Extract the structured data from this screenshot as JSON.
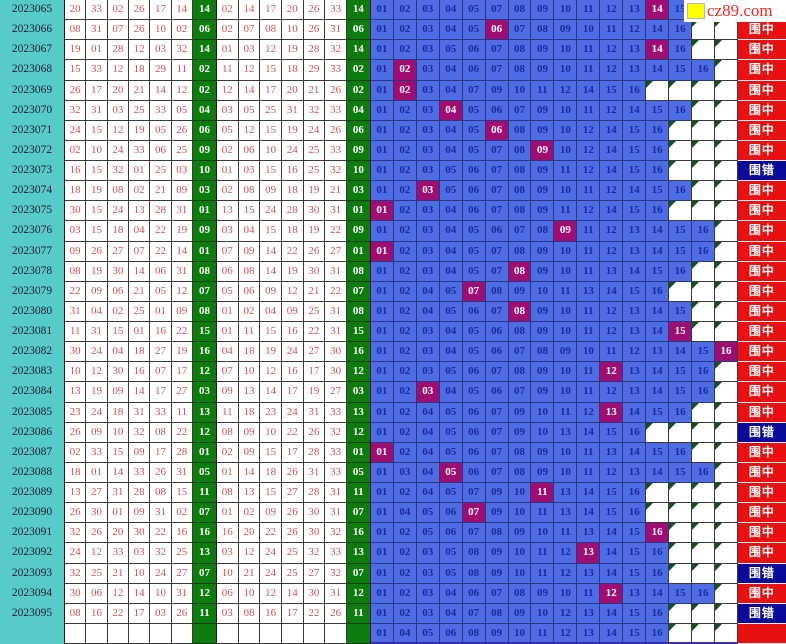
{
  "site_logo": {
    "text": "cz89.com",
    "square_color": "#ffff00",
    "text_color": "#e82b22"
  },
  "legend": {
    "hit": "围中",
    "miss": "围错"
  },
  "colors": {
    "period_bg": "#57caca",
    "draw_text": "#cc5252",
    "blue_ball_bg": "#0d7c0d",
    "covered_bg": "#4e6ce4",
    "covered_text": "#1b2b99",
    "hit_bg": "#a00d72",
    "result_hit_bg": "#e81010",
    "result_miss_bg": "#0a0a99"
  },
  "rows": [
    {
      "period": "2023065",
      "drawn": [
        "20",
        "33",
        "02",
        "26",
        "17",
        "14"
      ],
      "blue_ball": "14",
      "sorted": [
        "02",
        "14",
        "17",
        "20",
        "26",
        "33"
      ],
      "covered": [
        "01",
        "02",
        "03",
        "04",
        "05",
        "07",
        "08",
        "09",
        "10",
        "11",
        "12",
        "13",
        "14",
        "15"
      ],
      "result": ""
    },
    {
      "period": "2023066",
      "drawn": [
        "08",
        "31",
        "07",
        "26",
        "10",
        "02"
      ],
      "blue_ball": "06",
      "sorted": [
        "02",
        "07",
        "08",
        "10",
        "26",
        "31"
      ],
      "covered": [
        "01",
        "02",
        "03",
        "04",
        "05",
        "06",
        "07",
        "08",
        "09",
        "10",
        "11",
        "12",
        "14",
        "16"
      ],
      "result": "围中"
    },
    {
      "period": "2023067",
      "drawn": [
        "19",
        "01",
        "28",
        "12",
        "03",
        "32"
      ],
      "blue_ball": "14",
      "sorted": [
        "01",
        "03",
        "12",
        "19",
        "28",
        "32"
      ],
      "covered": [
        "01",
        "02",
        "03",
        "05",
        "06",
        "07",
        "08",
        "09",
        "10",
        "11",
        "12",
        "13",
        "14",
        "16"
      ],
      "result": "围中"
    },
    {
      "period": "2023068",
      "drawn": [
        "15",
        "33",
        "12",
        "18",
        "29",
        "11"
      ],
      "blue_ball": "02",
      "sorted": [
        "11",
        "12",
        "15",
        "18",
        "29",
        "33"
      ],
      "covered": [
        "01",
        "02",
        "03",
        "04",
        "06",
        "07",
        "08",
        "09",
        "10",
        "11",
        "12",
        "13",
        "14",
        "15",
        "16"
      ],
      "result": "围中"
    },
    {
      "period": "2023069",
      "drawn": [
        "26",
        "17",
        "20",
        "21",
        "14",
        "12"
      ],
      "blue_ball": "02",
      "sorted": [
        "12",
        "14",
        "17",
        "20",
        "21",
        "26"
      ],
      "covered": [
        "01",
        "02",
        "03",
        "04",
        "07",
        "09",
        "10",
        "11",
        "12",
        "14",
        "15",
        "16"
      ],
      "result": "围中"
    },
    {
      "period": "2023070",
      "drawn": [
        "32",
        "31",
        "03",
        "25",
        "33",
        "05"
      ],
      "blue_ball": "04",
      "sorted": [
        "03",
        "05",
        "25",
        "31",
        "32",
        "33"
      ],
      "covered": [
        "01",
        "02",
        "03",
        "04",
        "05",
        "06",
        "07",
        "09",
        "10",
        "11",
        "12",
        "14",
        "15",
        "16"
      ],
      "result": "围中"
    },
    {
      "period": "2023071",
      "drawn": [
        "24",
        "15",
        "12",
        "19",
        "05",
        "26"
      ],
      "blue_ball": "06",
      "sorted": [
        "05",
        "12",
        "15",
        "19",
        "24",
        "26"
      ],
      "covered": [
        "01",
        "02",
        "03",
        "04",
        "05",
        "06",
        "08",
        "09",
        "10",
        "12",
        "14",
        "15",
        "16"
      ],
      "result": "围中"
    },
    {
      "period": "2023072",
      "drawn": [
        "02",
        "10",
        "24",
        "33",
        "06",
        "25"
      ],
      "blue_ball": "09",
      "sorted": [
        "02",
        "06",
        "10",
        "24",
        "25",
        "33"
      ],
      "covered": [
        "01",
        "02",
        "03",
        "04",
        "05",
        "07",
        "08",
        "09",
        "10",
        "12",
        "14",
        "15",
        "16"
      ],
      "result": "围中"
    },
    {
      "period": "2023073",
      "drawn": [
        "16",
        "15",
        "32",
        "01",
        "25",
        "03"
      ],
      "blue_ball": "10",
      "sorted": [
        "01",
        "03",
        "15",
        "16",
        "25",
        "32"
      ],
      "covered": [
        "01",
        "02",
        "03",
        "05",
        "06",
        "07",
        "08",
        "09",
        "11",
        "12",
        "14",
        "15",
        "16"
      ],
      "result": "围错"
    },
    {
      "period": "2023074",
      "drawn": [
        "18",
        "19",
        "08",
        "02",
        "21",
        "09"
      ],
      "blue_ball": "03",
      "sorted": [
        "02",
        "08",
        "09",
        "18",
        "19",
        "21"
      ],
      "covered": [
        "01",
        "02",
        "03",
        "05",
        "06",
        "07",
        "08",
        "09",
        "10",
        "11",
        "12",
        "14",
        "15",
        "16"
      ],
      "result": "围中"
    },
    {
      "period": "2023075",
      "drawn": [
        "30",
        "15",
        "24",
        "13",
        "28",
        "31"
      ],
      "blue_ball": "01",
      "sorted": [
        "13",
        "15",
        "24",
        "28",
        "30",
        "31"
      ],
      "covered": [
        "01",
        "02",
        "03",
        "04",
        "06",
        "07",
        "08",
        "09",
        "11",
        "12",
        "14",
        "15",
        "16"
      ],
      "result": "围中"
    },
    {
      "period": "2023076",
      "drawn": [
        "03",
        "15",
        "18",
        "04",
        "22",
        "19"
      ],
      "blue_ball": "09",
      "sorted": [
        "03",
        "04",
        "15",
        "18",
        "19",
        "22"
      ],
      "covered": [
        "01",
        "02",
        "03",
        "04",
        "05",
        "06",
        "07",
        "08",
        "09",
        "11",
        "12",
        "13",
        "14",
        "15",
        "16"
      ],
      "result": "围中"
    },
    {
      "period": "2023077",
      "drawn": [
        "09",
        "26",
        "27",
        "07",
        "22",
        "14"
      ],
      "blue_ball": "01",
      "sorted": [
        "07",
        "09",
        "14",
        "22",
        "26",
        "27"
      ],
      "covered": [
        "01",
        "02",
        "03",
        "04",
        "05",
        "07",
        "08",
        "09",
        "10",
        "11",
        "12",
        "13",
        "14",
        "15",
        "16"
      ],
      "result": "围中"
    },
    {
      "period": "2023078",
      "drawn": [
        "08",
        "19",
        "30",
        "14",
        "06",
        "31"
      ],
      "blue_ball": "08",
      "sorted": [
        "06",
        "08",
        "14",
        "19",
        "30",
        "31"
      ],
      "covered": [
        "01",
        "02",
        "03",
        "04",
        "05",
        "07",
        "08",
        "09",
        "10",
        "11",
        "13",
        "14",
        "15",
        "16"
      ],
      "result": "围中"
    },
    {
      "period": "2023079",
      "drawn": [
        "22",
        "09",
        "06",
        "21",
        "05",
        "12"
      ],
      "blue_ball": "07",
      "sorted": [
        "05",
        "06",
        "09",
        "12",
        "21",
        "22"
      ],
      "covered": [
        "01",
        "02",
        "04",
        "05",
        "07",
        "08",
        "09",
        "10",
        "11",
        "13",
        "14",
        "15",
        "16"
      ],
      "result": "围中"
    },
    {
      "period": "2023080",
      "drawn": [
        "31",
        "04",
        "02",
        "25",
        "01",
        "09"
      ],
      "blue_ball": "08",
      "sorted": [
        "01",
        "02",
        "04",
        "09",
        "25",
        "31"
      ],
      "covered": [
        "01",
        "02",
        "04",
        "05",
        "06",
        "07",
        "08",
        "09",
        "10",
        "11",
        "12",
        "13",
        "14",
        "15"
      ],
      "result": "围中"
    },
    {
      "period": "2023081",
      "drawn": [
        "11",
        "31",
        "15",
        "01",
        "16",
        "22"
      ],
      "blue_ball": "15",
      "sorted": [
        "01",
        "11",
        "15",
        "16",
        "22",
        "31"
      ],
      "covered": [
        "01",
        "02",
        "03",
        "04",
        "05",
        "06",
        "08",
        "09",
        "10",
        "11",
        "12",
        "13",
        "14",
        "15"
      ],
      "result": "围中"
    },
    {
      "period": "2023082",
      "drawn": [
        "30",
        "24",
        "04",
        "18",
        "27",
        "19"
      ],
      "blue_ball": "16",
      "sorted": [
        "04",
        "18",
        "19",
        "24",
        "27",
        "30"
      ],
      "covered": [
        "01",
        "02",
        "03",
        "04",
        "05",
        "06",
        "07",
        "08",
        "09",
        "10",
        "11",
        "12",
        "13",
        "14",
        "15",
        "16"
      ],
      "result": "围中"
    },
    {
      "period": "2023083",
      "drawn": [
        "10",
        "12",
        "30",
        "16",
        "07",
        "17"
      ],
      "blue_ball": "12",
      "sorted": [
        "07",
        "10",
        "12",
        "16",
        "17",
        "30"
      ],
      "covered": [
        "01",
        "02",
        "03",
        "05",
        "06",
        "07",
        "08",
        "09",
        "10",
        "11",
        "12",
        "13",
        "14",
        "15",
        "16"
      ],
      "result": "围中"
    },
    {
      "period": "2023084",
      "drawn": [
        "13",
        "19",
        "09",
        "14",
        "17",
        "27"
      ],
      "blue_ball": "03",
      "sorted": [
        "09",
        "13",
        "14",
        "17",
        "19",
        "27"
      ],
      "covered": [
        "01",
        "02",
        "03",
        "04",
        "05",
        "06",
        "07",
        "09",
        "10",
        "11",
        "12",
        "13",
        "14",
        "15",
        "16"
      ],
      "result": "围中"
    },
    {
      "period": "2023085",
      "drawn": [
        "23",
        "24",
        "18",
        "31",
        "33",
        "11"
      ],
      "blue_ball": "13",
      "sorted": [
        "11",
        "18",
        "23",
        "24",
        "31",
        "33"
      ],
      "covered": [
        "01",
        "02",
        "04",
        "05",
        "06",
        "07",
        "09",
        "10",
        "11",
        "12",
        "13",
        "14",
        "15",
        "16"
      ],
      "result": "围中"
    },
    {
      "period": "2023086",
      "drawn": [
        "26",
        "09",
        "10",
        "32",
        "08",
        "22"
      ],
      "blue_ball": "12",
      "sorted": [
        "08",
        "09",
        "10",
        "22",
        "26",
        "32"
      ],
      "covered": [
        "01",
        "02",
        "04",
        "05",
        "06",
        "07",
        "09",
        "10",
        "13",
        "14",
        "15",
        "16"
      ],
      "result": "围错"
    },
    {
      "period": "2023087",
      "drawn": [
        "02",
        "33",
        "15",
        "09",
        "17",
        "28"
      ],
      "blue_ball": "01",
      "sorted": [
        "02",
        "09",
        "15",
        "17",
        "28",
        "33"
      ],
      "covered": [
        "01",
        "02",
        "04",
        "05",
        "06",
        "07",
        "08",
        "09",
        "10",
        "11",
        "13",
        "14",
        "15",
        "16"
      ],
      "result": "围中"
    },
    {
      "period": "2023088",
      "drawn": [
        "18",
        "01",
        "14",
        "33",
        "26",
        "31"
      ],
      "blue_ball": "05",
      "sorted": [
        "01",
        "14",
        "18",
        "26",
        "31",
        "33"
      ],
      "covered": [
        "01",
        "03",
        "04",
        "05",
        "06",
        "07",
        "08",
        "09",
        "10",
        "11",
        "12",
        "13",
        "14",
        "15",
        "16"
      ],
      "result": "围中"
    },
    {
      "period": "2023089",
      "drawn": [
        "13",
        "27",
        "31",
        "28",
        "08",
        "15"
      ],
      "blue_ball": "11",
      "sorted": [
        "08",
        "13",
        "15",
        "27",
        "28",
        "31"
      ],
      "covered": [
        "01",
        "02",
        "04",
        "05",
        "07",
        "09",
        "10",
        "11",
        "13",
        "14",
        "15",
        "16"
      ],
      "result": "围中"
    },
    {
      "period": "2023090",
      "drawn": [
        "26",
        "30",
        "01",
        "09",
        "31",
        "02"
      ],
      "blue_ball": "07",
      "sorted": [
        "01",
        "02",
        "09",
        "26",
        "30",
        "31"
      ],
      "covered": [
        "01",
        "04",
        "05",
        "06",
        "07",
        "09",
        "10",
        "11",
        "13",
        "14",
        "15",
        "16"
      ],
      "result": "围中"
    },
    {
      "period": "2023091",
      "drawn": [
        "32",
        "26",
        "20",
        "30",
        "22",
        "16"
      ],
      "blue_ball": "16",
      "sorted": [
        "16",
        "20",
        "22",
        "26",
        "30",
        "32"
      ],
      "covered": [
        "01",
        "02",
        "05",
        "06",
        "07",
        "08",
        "09",
        "10",
        "11",
        "13",
        "14",
        "15",
        "16"
      ],
      "result": "围中"
    },
    {
      "period": "2023092",
      "drawn": [
        "24",
        "12",
        "33",
        "03",
        "32",
        "25"
      ],
      "blue_ball": "13",
      "sorted": [
        "03",
        "12",
        "24",
        "25",
        "32",
        "33"
      ],
      "covered": [
        "01",
        "02",
        "03",
        "05",
        "08",
        "09",
        "10",
        "11",
        "12",
        "13",
        "14",
        "15",
        "16"
      ],
      "result": "围中"
    },
    {
      "period": "2023093",
      "drawn": [
        "32",
        "25",
        "21",
        "10",
        "24",
        "27"
      ],
      "blue_ball": "07",
      "sorted": [
        "10",
        "21",
        "24",
        "25",
        "27",
        "32"
      ],
      "covered": [
        "01",
        "02",
        "03",
        "05",
        "08",
        "09",
        "10",
        "11",
        "12",
        "13",
        "14",
        "15",
        "16"
      ],
      "result": "围错"
    },
    {
      "period": "2023094",
      "drawn": [
        "30",
        "06",
        "12",
        "14",
        "10",
        "31"
      ],
      "blue_ball": "12",
      "sorted": [
        "06",
        "10",
        "12",
        "14",
        "30",
        "31"
      ],
      "covered": [
        "01",
        "02",
        "03",
        "04",
        "06",
        "07",
        "08",
        "09",
        "10",
        "11",
        "12",
        "13",
        "14",
        "15",
        "16"
      ],
      "result": "围中"
    },
    {
      "period": "2023095",
      "drawn": [
        "08",
        "16",
        "22",
        "17",
        "03",
        "26"
      ],
      "blue_ball": "11",
      "sorted": [
        "03",
        "08",
        "16",
        "17",
        "22",
        "26"
      ],
      "covered": [
        "01",
        "02",
        "03",
        "04",
        "07",
        "08",
        "09",
        "10",
        "12",
        "13",
        "14",
        "15",
        "16"
      ],
      "result": "围错"
    },
    {
      "period": "",
      "drawn": [],
      "blue_ball": "",
      "sorted": [],
      "covered": [
        "01",
        "04",
        "05",
        "06",
        "08",
        "09",
        "10",
        "11",
        "12",
        "13",
        "14",
        "15",
        "16"
      ],
      "result": ""
    }
  ]
}
